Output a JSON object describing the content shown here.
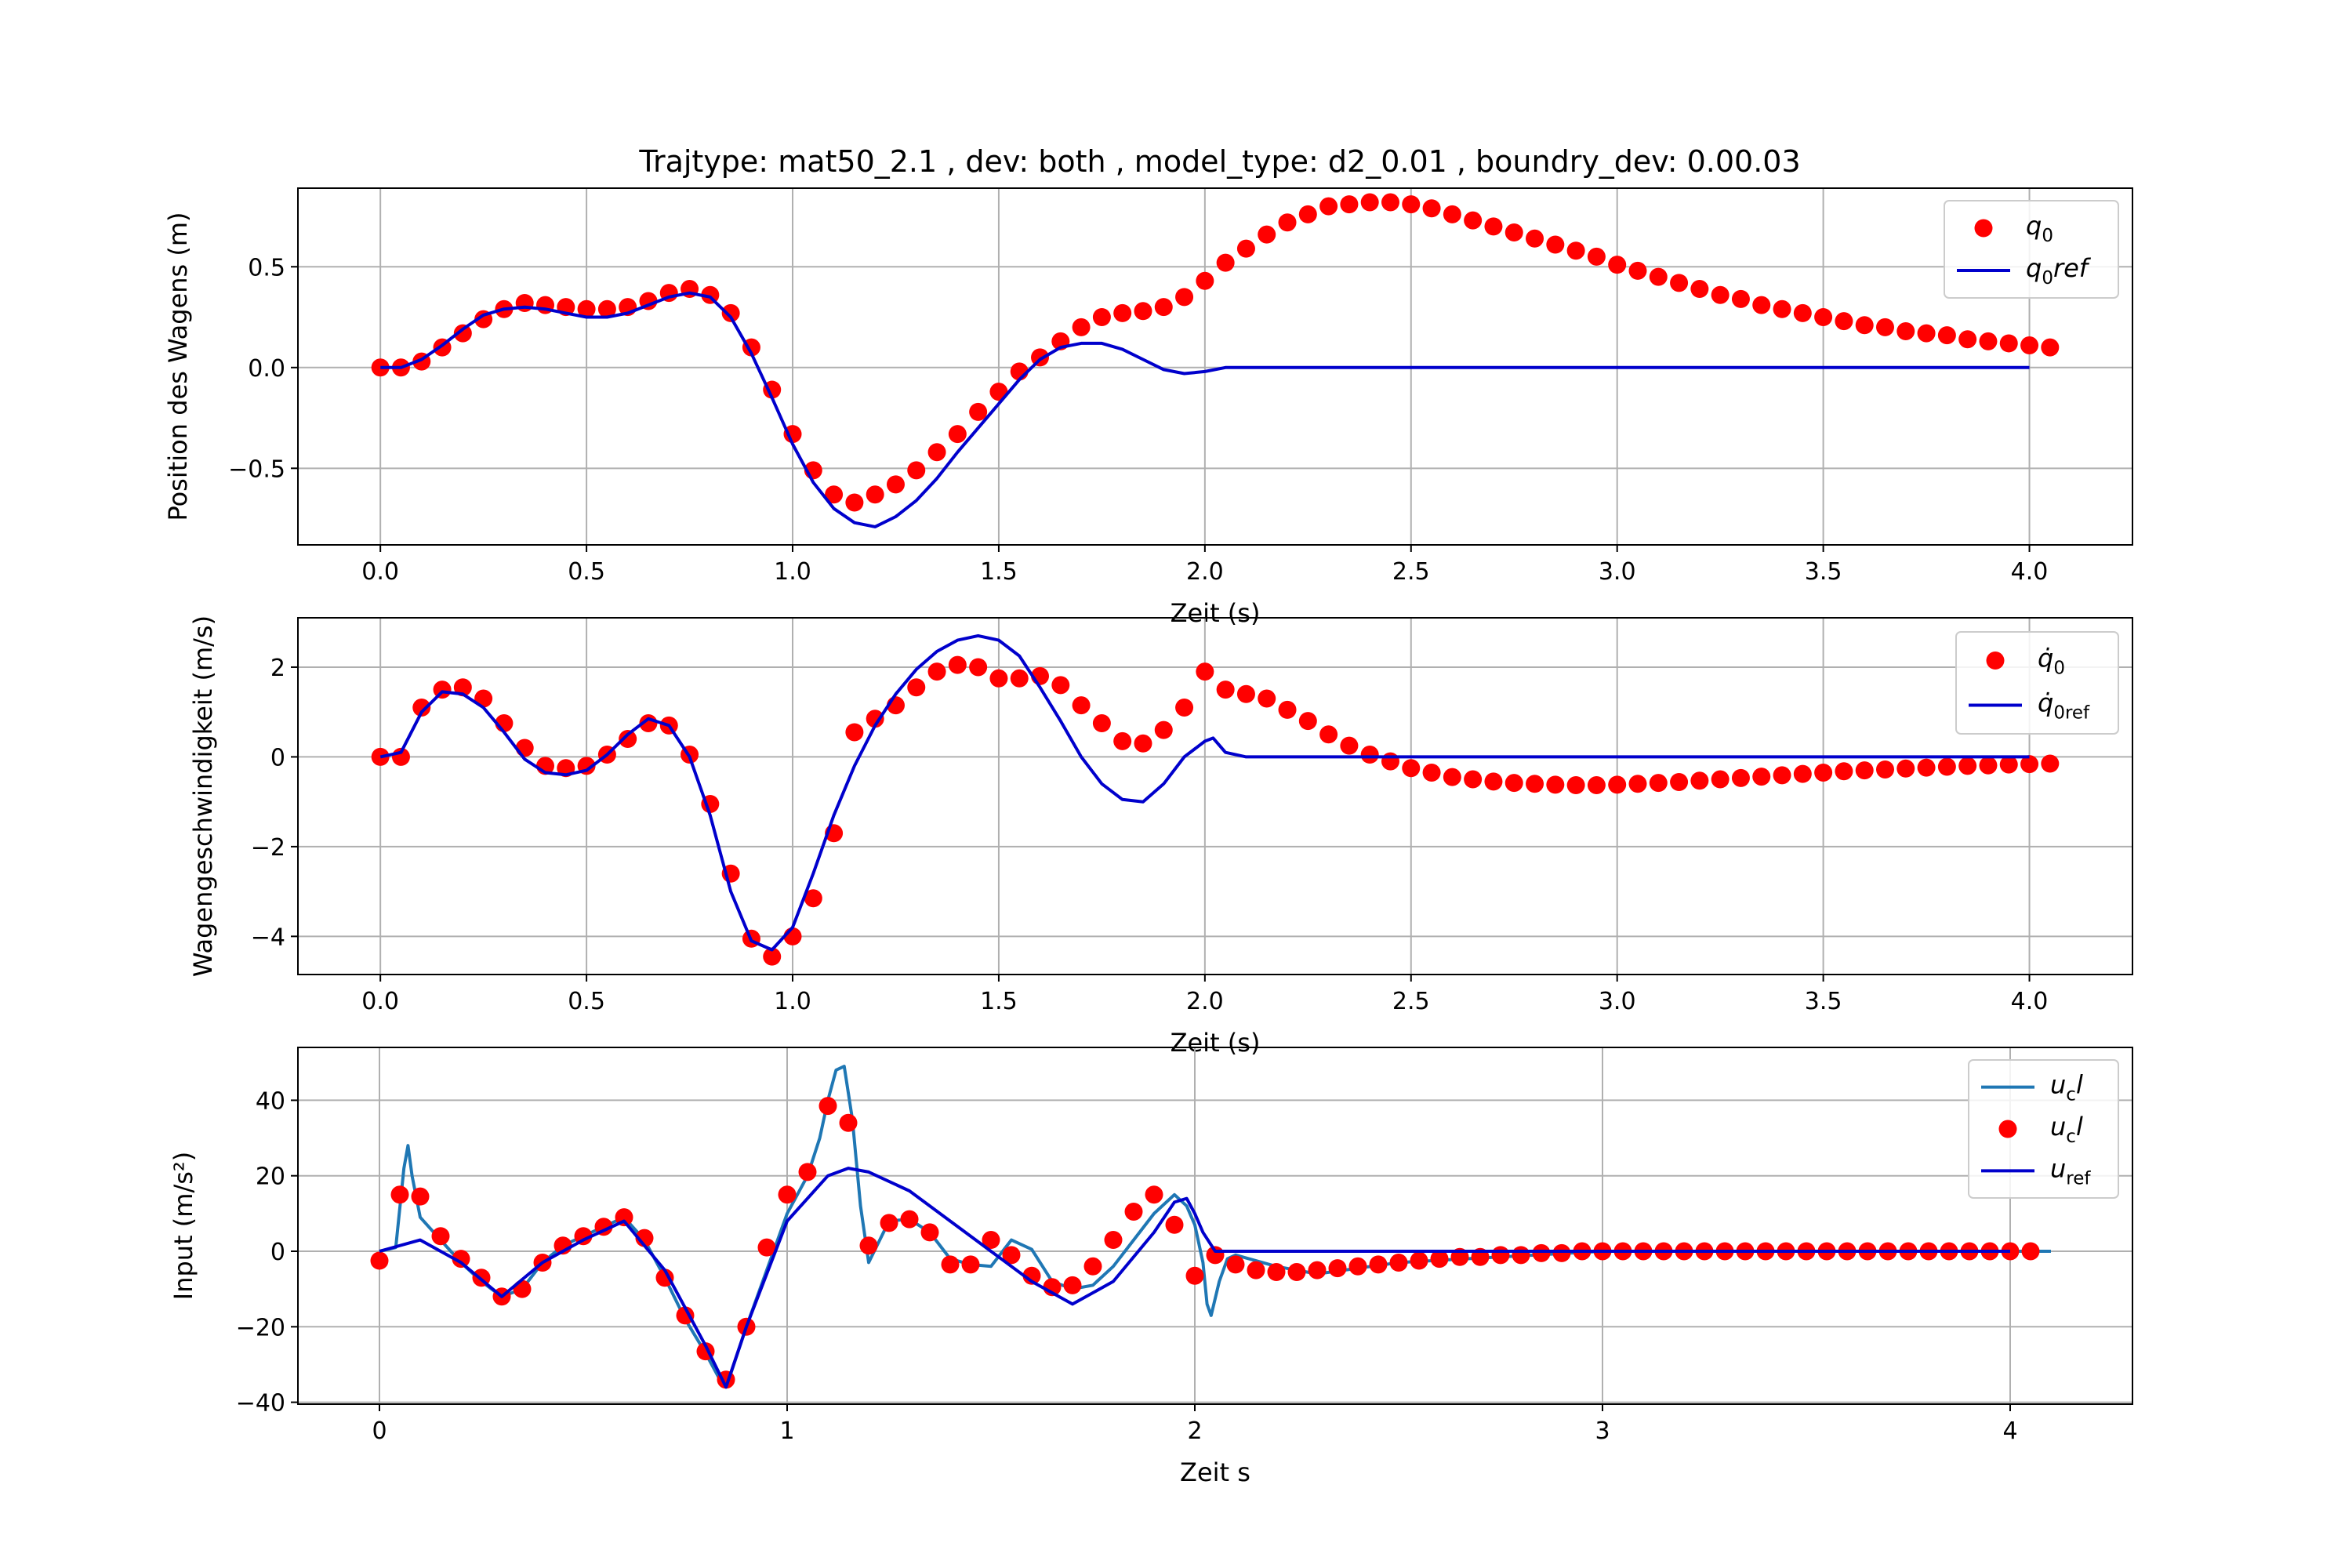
{
  "figure_title": "Trajtype: mat50_2.1 , dev: both , model_type: d2_0.01 , boundry_dev: 0.00.03",
  "colors": {
    "dots": "#ff0000",
    "ref": "#0000cc",
    "ucl": "#1f77b4",
    "grid": "#b0b0b0"
  },
  "chart_data": [
    {
      "type": "line",
      "title": "Trajtype: mat50_2.1 , dev: both , model_type: d2_0.01 , boundry_dev: 0.00.03",
      "xlabel": "Zeit (s)",
      "ylabel": "Position des Wagens (m)",
      "xlim": [
        -0.2,
        4.25
      ],
      "ylim": [
        -0.88,
        0.89
      ],
      "xticks": [
        0.0,
        0.5,
        1.0,
        1.5,
        2.0,
        2.5,
        3.0,
        3.5,
        4.0
      ],
      "xticklabels": [
        "0.0",
        "0.5",
        "1.0",
        "1.5",
        "2.0",
        "2.5",
        "3.0",
        "3.5",
        "4.0"
      ],
      "yticks": [
        -0.5,
        0.0,
        0.5
      ],
      "yticklabels": [
        "−0.5",
        "0.0",
        "0.5"
      ],
      "grid": true,
      "legend": {
        "position": "top-right"
      },
      "series": [
        {
          "name": "q_0",
          "label_main": "q",
          "label_sub": "0",
          "label_tail": "",
          "kind": "scatter",
          "color": "#ff0000",
          "x": [
            0.0,
            0.05,
            0.1,
            0.15,
            0.2,
            0.25,
            0.3,
            0.35,
            0.4,
            0.45,
            0.5,
            0.55,
            0.6,
            0.65,
            0.7,
            0.75,
            0.8,
            0.85,
            0.9,
            0.95,
            1.0,
            1.05,
            1.1,
            1.15,
            1.2,
            1.25,
            1.3,
            1.35,
            1.4,
            1.45,
            1.5,
            1.55,
            1.6,
            1.65,
            1.7,
            1.75,
            1.8,
            1.85,
            1.9,
            1.95,
            2.0,
            2.05,
            2.1,
            2.15,
            2.2,
            2.25,
            2.3,
            2.35,
            2.4,
            2.45,
            2.5,
            2.55,
            2.6,
            2.65,
            2.7,
            2.75,
            2.8,
            2.85,
            2.9,
            2.95,
            3.0,
            3.05,
            3.1,
            3.15,
            3.2,
            3.25,
            3.3,
            3.35,
            3.4,
            3.45,
            3.5,
            3.55,
            3.6,
            3.65,
            3.7,
            3.75,
            3.8,
            3.85,
            3.9,
            3.95,
            4.0,
            4.05
          ],
          "y": [
            0.0,
            0.0,
            0.03,
            0.1,
            0.17,
            0.24,
            0.29,
            0.32,
            0.31,
            0.3,
            0.29,
            0.29,
            0.3,
            0.33,
            0.37,
            0.39,
            0.36,
            0.27,
            0.1,
            -0.11,
            -0.33,
            -0.51,
            -0.63,
            -0.67,
            -0.63,
            -0.58,
            -0.51,
            -0.42,
            -0.33,
            -0.22,
            -0.12,
            -0.02,
            0.05,
            0.13,
            0.2,
            0.25,
            0.27,
            0.28,
            0.3,
            0.35,
            0.43,
            0.52,
            0.59,
            0.66,
            0.72,
            0.76,
            0.8,
            0.81,
            0.82,
            0.82,
            0.81,
            0.79,
            0.76,
            0.73,
            0.7,
            0.67,
            0.64,
            0.61,
            0.58,
            0.55,
            0.51,
            0.48,
            0.45,
            0.42,
            0.39,
            0.36,
            0.34,
            0.31,
            0.29,
            0.27,
            0.25,
            0.23,
            0.21,
            0.2,
            0.18,
            0.17,
            0.16,
            0.14,
            0.13,
            0.12,
            0.11,
            0.1
          ]
        },
        {
          "name": "q_0ref",
          "label_main": "q",
          "label_sub": "0",
          "label_tail": "ref",
          "kind": "line",
          "color": "#0000cc",
          "x": [
            0.0,
            0.05,
            0.1,
            0.15,
            0.2,
            0.25,
            0.3,
            0.35,
            0.4,
            0.45,
            0.5,
            0.55,
            0.6,
            0.65,
            0.7,
            0.75,
            0.8,
            0.85,
            0.9,
            0.95,
            1.0,
            1.05,
            1.1,
            1.15,
            1.2,
            1.25,
            1.3,
            1.35,
            1.4,
            1.45,
            1.5,
            1.55,
            1.6,
            1.65,
            1.7,
            1.75,
            1.8,
            1.85,
            1.9,
            1.95,
            2.0,
            2.05,
            2.1,
            2.5,
            3.0,
            3.5,
            4.0
          ],
          "y": [
            0.0,
            0.0,
            0.04,
            0.11,
            0.19,
            0.26,
            0.29,
            0.3,
            0.29,
            0.27,
            0.25,
            0.25,
            0.27,
            0.31,
            0.35,
            0.37,
            0.35,
            0.25,
            0.07,
            -0.15,
            -0.38,
            -0.57,
            -0.7,
            -0.77,
            -0.79,
            -0.74,
            -0.66,
            -0.55,
            -0.42,
            -0.3,
            -0.18,
            -0.06,
            0.04,
            0.1,
            0.12,
            0.12,
            0.09,
            0.04,
            -0.01,
            -0.03,
            -0.02,
            0.0,
            0.0,
            0.0,
            0.0,
            0.0,
            0.0
          ]
        }
      ]
    },
    {
      "type": "line",
      "title": "",
      "xlabel": "Zeit (s)",
      "ylabel": "Wagengeschwindigkeit (m/s)",
      "xlim": [
        -0.2,
        4.25
      ],
      "ylim": [
        -4.85,
        3.1
      ],
      "xticks": [
        0.0,
        0.5,
        1.0,
        1.5,
        2.0,
        2.5,
        3.0,
        3.5,
        4.0
      ],
      "xticklabels": [
        "0.0",
        "0.5",
        "1.0",
        "1.5",
        "2.0",
        "2.5",
        "3.0",
        "3.5",
        "4.0"
      ],
      "yticks": [
        -4,
        -2,
        0,
        2
      ],
      "yticklabels": [
        "−4",
        "−2",
        "0",
        "2"
      ],
      "grid": true,
      "legend": {
        "position": "top-right"
      },
      "series": [
        {
          "name": "q̇_0",
          "label_main": "q̇",
          "label_sub": "0",
          "label_tail": "",
          "kind": "scatter",
          "color": "#ff0000",
          "x": [
            0.0,
            0.05,
            0.1,
            0.15,
            0.2,
            0.25,
            0.3,
            0.35,
            0.4,
            0.45,
            0.5,
            0.55,
            0.6,
            0.65,
            0.7,
            0.75,
            0.8,
            0.85,
            0.9,
            0.95,
            1.0,
            1.05,
            1.1,
            1.15,
            1.2,
            1.25,
            1.3,
            1.35,
            1.4,
            1.45,
            1.5,
            1.55,
            1.6,
            1.65,
            1.7,
            1.75,
            1.8,
            1.85,
            1.9,
            1.95,
            2.0,
            2.05,
            2.1,
            2.15,
            2.2,
            2.25,
            2.3,
            2.35,
            2.4,
            2.45,
            2.5,
            2.55,
            2.6,
            2.65,
            2.7,
            2.75,
            2.8,
            2.85,
            2.9,
            2.95,
            3.0,
            3.05,
            3.1,
            3.15,
            3.2,
            3.25,
            3.3,
            3.35,
            3.4,
            3.45,
            3.5,
            3.55,
            3.6,
            3.65,
            3.7,
            3.75,
            3.8,
            3.85,
            3.9,
            3.95,
            4.0,
            4.05
          ],
          "y": [
            0.0,
            0.0,
            1.1,
            1.5,
            1.55,
            1.3,
            0.75,
            0.2,
            -0.2,
            -0.25,
            -0.2,
            0.05,
            0.4,
            0.75,
            0.7,
            0.05,
            -1.05,
            -2.6,
            -4.05,
            -4.45,
            -4.0,
            -3.15,
            -1.7,
            0.55,
            0.85,
            1.15,
            1.55,
            1.9,
            2.05,
            2.0,
            1.75,
            1.75,
            1.8,
            1.6,
            1.15,
            0.75,
            0.35,
            0.3,
            0.6,
            1.1,
            1.9,
            1.5,
            1.4,
            1.3,
            1.05,
            0.8,
            0.5,
            0.25,
            0.05,
            -0.1,
            -0.25,
            -0.35,
            -0.45,
            -0.5,
            -0.55,
            -0.58,
            -0.6,
            -0.62,
            -0.63,
            -0.63,
            -0.62,
            -0.6,
            -0.58,
            -0.56,
            -0.53,
            -0.5,
            -0.47,
            -0.44,
            -0.41,
            -0.38,
            -0.35,
            -0.32,
            -0.3,
            -0.28,
            -0.26,
            -0.24,
            -0.22,
            -0.2,
            -0.19,
            -0.17,
            -0.16,
            -0.15
          ]
        },
        {
          "name": "q̇_0ref",
          "label_main": "q̇",
          "label_sub": "0ref",
          "label_tail": "",
          "kind": "line",
          "color": "#0000cc",
          "x": [
            0.0,
            0.05,
            0.1,
            0.15,
            0.2,
            0.25,
            0.3,
            0.35,
            0.4,
            0.45,
            0.5,
            0.55,
            0.6,
            0.65,
            0.7,
            0.75,
            0.8,
            0.85,
            0.9,
            0.95,
            1.0,
            1.05,
            1.1,
            1.15,
            1.2,
            1.25,
            1.3,
            1.35,
            1.4,
            1.45,
            1.5,
            1.55,
            1.6,
            1.65,
            1.7,
            1.75,
            1.8,
            1.85,
            1.9,
            1.95,
            2.0,
            2.02,
            2.05,
            2.1,
            2.5,
            3.0,
            3.5,
            4.0
          ],
          "y": [
            0.0,
            0.1,
            1.0,
            1.45,
            1.4,
            1.1,
            0.55,
            -0.05,
            -0.35,
            -0.4,
            -0.3,
            0.05,
            0.5,
            0.85,
            0.7,
            0.0,
            -1.3,
            -3.0,
            -4.1,
            -4.3,
            -3.8,
            -2.6,
            -1.3,
            -0.2,
            0.7,
            1.4,
            1.95,
            2.35,
            2.6,
            2.7,
            2.6,
            2.25,
            1.55,
            0.8,
            0.0,
            -0.6,
            -0.95,
            -1.0,
            -0.6,
            0.0,
            0.35,
            0.42,
            0.1,
            0.0,
            0.0,
            0.0,
            0.0,
            0.0
          ]
        }
      ]
    },
    {
      "type": "line",
      "title": "",
      "xlabel": "Zeit s",
      "ylabel": "Input (m/s²)",
      "xlim": [
        -0.2,
        4.3
      ],
      "ylim": [
        -40.5,
        54.0
      ],
      "xticks": [
        0,
        1,
        2,
        3,
        4
      ],
      "xticklabels": [
        "0",
        "1",
        "2",
        "3",
        "4"
      ],
      "yticks": [
        -40,
        -20,
        0,
        20,
        40
      ],
      "yticklabels": [
        "−40",
        "−20",
        "0",
        "20",
        "40"
      ],
      "grid": true,
      "legend": {
        "position": "top-right"
      },
      "series": [
        {
          "name": "u_cl",
          "label_main": "u",
          "label_sub": "c",
          "label_tail": "l",
          "kind": "line",
          "color": "#1f77b4",
          "x": [
            0.0,
            0.04,
            0.06,
            0.07,
            0.08,
            0.1,
            0.15,
            0.2,
            0.25,
            0.3,
            0.35,
            0.4,
            0.45,
            0.5,
            0.55,
            0.6,
            0.65,
            0.7,
            0.75,
            0.8,
            0.84,
            0.86,
            0.9,
            0.95,
            1.0,
            1.05,
            1.08,
            1.1,
            1.12,
            1.14,
            1.16,
            1.18,
            1.2,
            1.25,
            1.3,
            1.35,
            1.4,
            1.45,
            1.5,
            1.55,
            1.6,
            1.65,
            1.7,
            1.75,
            1.8,
            1.85,
            1.9,
            1.95,
            1.98,
            2.0,
            2.02,
            2.03,
            2.04,
            2.06,
            2.08,
            2.1,
            2.2,
            2.3,
            2.5,
            3.0,
            3.5,
            4.0,
            4.1
          ],
          "y": [
            0.0,
            1.0,
            22.0,
            28.0,
            20.0,
            9.0,
            3.0,
            -3.0,
            -8.0,
            -12.0,
            -10.0,
            -3.0,
            1.5,
            4.0,
            6.5,
            9.0,
            3.0,
            -7.0,
            -18.0,
            -27.0,
            -35.0,
            -33.0,
            -20.0,
            -5.0,
            10.0,
            20.0,
            30.0,
            40.0,
            48.0,
            49.0,
            35.0,
            12.0,
            -3.0,
            8.0,
            8.5,
            5.0,
            -2.0,
            -3.5,
            -4.0,
            3.0,
            0.5,
            -8.0,
            -10.0,
            -9.0,
            -4.0,
            3.0,
            10.0,
            15.0,
            12.0,
            7.0,
            -3.0,
            -14.0,
            -17.0,
            -8.0,
            -2.0,
            -1.0,
            -4.0,
            -6.0,
            -3.0,
            0.0,
            0.0,
            0.0,
            0.0
          ]
        },
        {
          "name": "u_cl",
          "label_main": "u",
          "label_sub": "c",
          "label_tail": "l",
          "kind": "scatter",
          "color": "#ff0000",
          "x": [
            0.0,
            0.05,
            0.1,
            0.15,
            0.2,
            0.25,
            0.3,
            0.35,
            0.4,
            0.45,
            0.5,
            0.55,
            0.6,
            0.65,
            0.7,
            0.75,
            0.8,
            0.85,
            0.9,
            0.95,
            1.0,
            1.05,
            1.1,
            1.15,
            1.2,
            1.25,
            1.3,
            1.35,
            1.4,
            1.45,
            1.5,
            1.55,
            1.6,
            1.65,
            1.7,
            1.75,
            1.8,
            1.85,
            1.9,
            1.95,
            2.0,
            2.05,
            2.1,
            2.15,
            2.2,
            2.25,
            2.3,
            2.35,
            2.4,
            2.45,
            2.5,
            2.55,
            2.6,
            2.65,
            2.7,
            2.75,
            2.8,
            2.85,
            2.9,
            2.95,
            3.0,
            3.05,
            3.1,
            3.15,
            3.2,
            3.25,
            3.3,
            3.35,
            3.4,
            3.45,
            3.5,
            3.55,
            3.6,
            3.65,
            3.7,
            3.75,
            3.8,
            3.85,
            3.9,
            3.95,
            4.0,
            4.05
          ],
          "y": [
            -2.5,
            15.0,
            14.5,
            4.0,
            -2.0,
            -7.0,
            -12.0,
            -10.0,
            -3.0,
            1.5,
            4.0,
            6.5,
            9.0,
            3.5,
            -7.0,
            -17.0,
            -26.5,
            -34.0,
            -20.0,
            1.0,
            15.0,
            21.0,
            38.5,
            34.0,
            1.5,
            7.5,
            8.5,
            5.0,
            -3.5,
            -3.5,
            3.0,
            -1.0,
            -6.5,
            -9.5,
            -9.0,
            -4.0,
            3.0,
            10.5,
            15.0,
            7.0,
            -6.5,
            -1.0,
            -3.5,
            -5.0,
            -5.5,
            -5.5,
            -5.0,
            -4.5,
            -4.0,
            -3.5,
            -3.0,
            -2.5,
            -2.0,
            -1.5,
            -1.5,
            -1.0,
            -1.0,
            -0.5,
            -0.5,
            0.0,
            0.0,
            0.0,
            0.0,
            0.0,
            0.0,
            0.0,
            0.0,
            0.0,
            0.0,
            0.0,
            0.0,
            0.0,
            0.0,
            0.0,
            0.0,
            0.0,
            0.0,
            0.0,
            0.0,
            0.0,
            0.0,
            0.0
          ]
        },
        {
          "name": "u_ref",
          "label_main": "u",
          "label_sub": "ref",
          "label_tail": "",
          "kind": "line",
          "color": "#0000cc",
          "x": [
            0.0,
            0.1,
            0.2,
            0.3,
            0.4,
            0.5,
            0.6,
            0.7,
            0.8,
            0.85,
            0.9,
            1.0,
            1.1,
            1.15,
            1.2,
            1.3,
            1.4,
            1.5,
            1.6,
            1.7,
            1.8,
            1.9,
            1.95,
            1.98,
            2.0,
            2.02,
            2.05,
            2.1,
            2.5,
            3.0,
            3.5,
            4.0
          ],
          "y": [
            0.0,
            3.0,
            -3.0,
            -12.0,
            -3.0,
            3.0,
            8.0,
            -5.0,
            -25.0,
            -36.0,
            -20.0,
            8.0,
            20.0,
            22.0,
            21.0,
            16.0,
            8.0,
            0.0,
            -8.0,
            -14.0,
            -8.0,
            5.0,
            13.0,
            14.0,
            10.0,
            5.0,
            0.0,
            0.0,
            0.0,
            0.0,
            0.0,
            0.0
          ]
        }
      ]
    }
  ]
}
